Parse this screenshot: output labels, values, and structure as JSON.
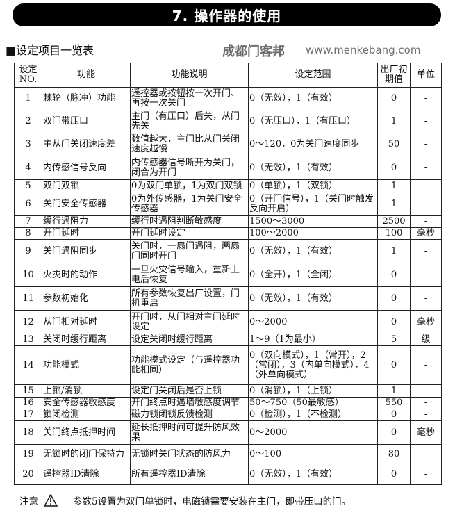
{
  "title": "7. 操作器的使用",
  "section_heading": "■设定项目一览表",
  "table": {
    "headers": [
      "设定NO.",
      "功能",
      "功能说明",
      "设定范围",
      "出厂初期值",
      "单位"
    ],
    "rows": [
      {
        "no": "1",
        "func": "棘轮（脉冲）功能",
        "desc": "遥控器或按钮按一次开门、再按一次关门",
        "range": "0（无效），1（有效）",
        "default": "0",
        "unit": "-"
      },
      {
        "no": "2",
        "func": "双门带压口",
        "desc": "主门（有压口）后关，从门先关",
        "range": "0（无压口），1（有压口）",
        "default": "1",
        "unit": "-"
      },
      {
        "no": "3",
        "func": "主从门关闭速度差",
        "desc": "数值越大，主门比从门关闭速度越慢",
        "range": "0～120，0为关门速度同步",
        "default": "50",
        "unit": "-"
      },
      {
        "no": "4",
        "func": "内传感信号反向",
        "desc": "内传感器信号断开为关门，闭合为开门",
        "range": "0（无效），1（有效）",
        "default": "0",
        "unit": "-"
      },
      {
        "no": "5",
        "func": "双门双锁",
        "desc": "0为双门单锁，1为双门双锁",
        "range": "0（单锁），1（双锁）",
        "default": "1",
        "unit": "-"
      },
      {
        "no": "6",
        "func": "关门安全传感器",
        "desc": "0为外传感器，1为关门安全传感器",
        "range": "0（开门信号），1（关门时触发反向开启）",
        "default": "1",
        "unit": "-"
      },
      {
        "no": "7",
        "func": "缓行遇阻力",
        "desc": "缓行时遇阻判断敏感度",
        "range": "1500～3000",
        "default": "2500",
        "unit": "-"
      },
      {
        "no": "8",
        "func": "开门延时",
        "desc": "开门延时设定",
        "range": "100～2000",
        "default": "100",
        "unit": "毫秒"
      },
      {
        "no": "9",
        "func": "关门遇阻同步",
        "desc": "关门时，一扇门遇阻，两扇门同时开门",
        "range": "0（无效），1（有效）",
        "default": "1",
        "unit": "-"
      },
      {
        "no": "10",
        "func": "火灾时的动作",
        "desc": "一旦火灾信号输入，重新上电后恢复",
        "range": "0（全开），1（全闭）",
        "default": "0",
        "unit": "-"
      },
      {
        "no": "11",
        "func": "参数初始化",
        "desc": "所有参数恢复出厂设置，门机重启",
        "range": "0（无效），1（有效）",
        "default": "0",
        "unit": "-"
      },
      {
        "no": "12",
        "func": "从门相对延时",
        "desc": "开门时，从门相对主门延时设定",
        "range": "0～2000",
        "default": "0",
        "unit": "毫秒"
      },
      {
        "no": "13",
        "func": "关闭时缓行距离",
        "desc": "设定关闭时缓行距离",
        "range": "1～9（1为最小）",
        "default": "5",
        "unit": "级"
      },
      {
        "no": "14",
        "func": "功能模式",
        "desc": "功能模式设定（与遥控器功能相同）",
        "range": "0（双向模式），1（常开），2（常闭），3（内单向模式），4（外单向模式）",
        "default": "0",
        "unit": "-"
      },
      {
        "no": "15",
        "func": "上锁/消锁",
        "desc": "设定门关闭后是否上锁",
        "range": "0（消锁），1（上锁）",
        "default": "1",
        "unit": "-"
      },
      {
        "no": "16",
        "func": "安全传感器敏感度",
        "desc": "开门终点时遇墙敏感度调节",
        "range": "50～750（50最敏感）",
        "default": "550",
        "unit": "-"
      },
      {
        "no": "17",
        "func": "锁闭检测",
        "desc": "磁力锁闭锁反馈检测",
        "range": "0（检测），1（不检测）",
        "default": "0",
        "unit": "-"
      },
      {
        "no": "18",
        "func": "关门终点抵押时间",
        "desc": "延长抵押时间可提升防风效果",
        "range": "0～2000",
        "default": "0",
        "unit": "毫秒"
      },
      {
        "no": "19",
        "func": "无锁时的闭门保持力",
        "desc": "无锁时关门状态的防风力",
        "range": "0～100",
        "default": "80",
        "unit": "-"
      },
      {
        "no": "20",
        "func": "遥控器ID清除",
        "desc": "所有遥控器ID清除",
        "range": "0（无效），1（有效）",
        "default": "0",
        "unit": "-"
      }
    ]
  },
  "note": {
    "label": "注意",
    "icon": "warning-triangle-icon",
    "text": "参数5设置为双门单锁时，电磁锁需要安装在主门，即带压口的门。"
  },
  "watermark": {
    "name": "成都门客邦",
    "url": "www.menkebang.com"
  }
}
